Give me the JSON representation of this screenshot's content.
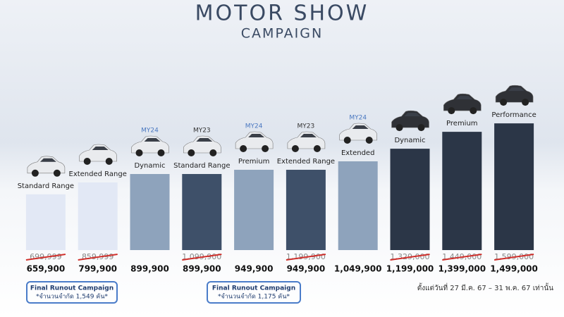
{
  "chart_data": {
    "type": "bar",
    "title": "MOTOR SHOW",
    "subtitle": "CAMPAIGN",
    "categories": [
      "Standard Range",
      "Extended Range",
      "Dynamic",
      "Standard Range",
      "Premium",
      "Extended Range",
      "Extended",
      "Dynamic",
      "Premium",
      "Performance"
    ],
    "model_years": [
      null,
      null,
      "MY24",
      "MY23",
      "MY24",
      "MY23",
      "MY24",
      null,
      null,
      null
    ],
    "values": [
      659900,
      799900,
      899900,
      899900,
      949900,
      949900,
      1049900,
      1199000,
      1399000,
      1499000
    ],
    "value_labels": [
      "659,900",
      "799,900",
      "899,900",
      "899,900",
      "949,900",
      "949,900",
      "1,049,900",
      "1,199,000",
      "1,399,000",
      "1,499,000"
    ],
    "old_prices": [
      "699,999",
      "859,999",
      null,
      "1,099,900",
      null,
      "1,199,900",
      null,
      "1,329,000",
      "1,449,000",
      "1,599,000"
    ],
    "colors": [
      "#e2e8f5",
      "#e2e8f5",
      "#8ea3bc",
      "#3e5069",
      "#8ea3bc",
      "#3e5069",
      "#8ea3bc",
      "#2b3647",
      "#2b3647",
      "#2b3647"
    ],
    "ylim": [
      0,
      1500000
    ],
    "campaigns": [
      {
        "title": "Final Runout Campaign",
        "note": "*จำนวนจำกัด 1,549 คัน*"
      },
      {
        "title": "Final Runout Campaign",
        "note": "*จำนวนจำกัด 1,175 คัน*"
      }
    ],
    "period_note": "ตั้งแต่วันที่ 27 มี.ค. 67 – 31 พ.ค. 67 เท่านั้น"
  }
}
